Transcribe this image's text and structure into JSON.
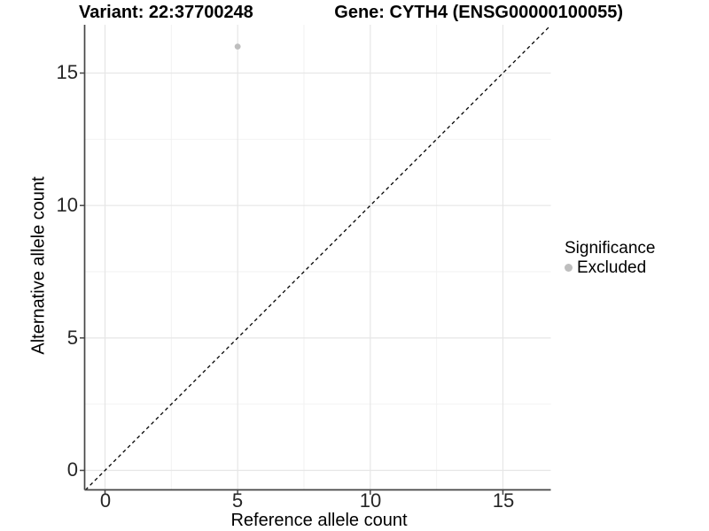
{
  "title": {
    "variant": "Variant: 22:37700248",
    "gene": "Gene: CYTH4 (ENSG00000100055)"
  },
  "axes": {
    "x": {
      "label": "Reference allele count",
      "ticks": [
        "0",
        "5",
        "10",
        "15"
      ]
    },
    "y": {
      "label": "Alternative allele count",
      "ticks": [
        "0",
        "5",
        "10",
        "15"
      ]
    }
  },
  "legend": {
    "title": "Significance",
    "items": [
      {
        "label": "Excluded",
        "color": "#bebebe"
      }
    ]
  },
  "colors": {
    "grid_major": "#e6e6e6",
    "grid_minor": "#f2f2f2",
    "axis_line": "#454545",
    "tick_mark": "#454545",
    "point": "#bebebe",
    "identity_line": "#000000"
  },
  "chart_data": {
    "type": "scatter",
    "title": "Variant: 22:37700248  /  Gene: CYTH4 (ENSG00000100055)",
    "xlabel": "Reference allele count",
    "ylabel": "Alternative allele count",
    "xlim": [
      -0.77,
      16.8
    ],
    "ylim": [
      -0.74,
      16.8
    ],
    "x_ticks": [
      0,
      5,
      10,
      15
    ],
    "y_ticks": [
      0,
      5,
      10,
      15
    ],
    "x_minor_ticks": [
      2.5,
      7.5,
      12.5
    ],
    "y_minor_ticks": [
      2.5,
      7.5,
      12.5
    ],
    "grid": true,
    "series": [
      {
        "name": "Excluded",
        "color": "#bebebe",
        "points": [
          {
            "x": 5,
            "y": 16
          }
        ]
      }
    ],
    "identity_line": {
      "slope": 1,
      "intercept": 0,
      "style": "dashed",
      "color": "#000000"
    },
    "legend": {
      "title": "Significance",
      "position": "right",
      "entries": [
        "Excluded"
      ]
    }
  }
}
